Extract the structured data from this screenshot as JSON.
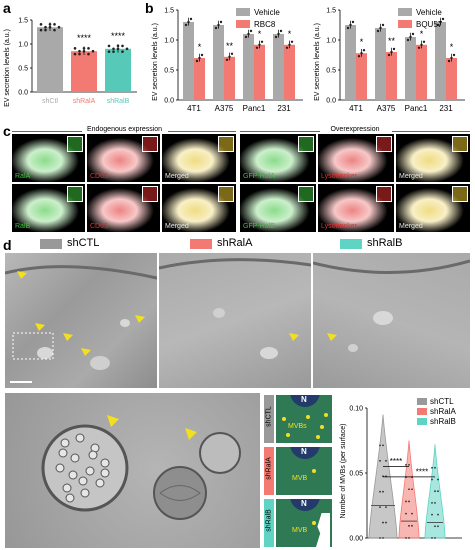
{
  "panels": {
    "a": "a",
    "b": "b",
    "c": "c",
    "d": "d"
  },
  "chart_a": {
    "type": "bar",
    "ylabel": "EV secretion levels (a.u.)",
    "categories": [
      "shCtl",
      "shRalA",
      "shRalB"
    ],
    "values": [
      1.35,
      0.85,
      0.9
    ],
    "stars": [
      "",
      "****",
      "****"
    ],
    "ylim": [
      0,
      1.5
    ],
    "yticks": [
      "0.0",
      "0.5",
      "1.0",
      "1.5"
    ],
    "colors": [
      "#a9a9a9",
      "#f27a73",
      "#56c9b8"
    ]
  },
  "chart_b1": {
    "type": "bar",
    "ylabel": "EV secretion levels (a.u.)",
    "categories": [
      "4T1",
      "A375",
      "Panc1",
      "231"
    ],
    "series": [
      {
        "name": "Vehicle",
        "values": [
          1.3,
          1.25,
          1.1,
          1.1
        ]
      },
      {
        "name": "RBC8",
        "values": [
          0.7,
          0.72,
          0.92,
          0.92
        ]
      }
    ],
    "stars": [
      "*",
      "**",
      "*",
      "*"
    ],
    "ylim": [
      0,
      1.5
    ],
    "yticks": [
      "0.0",
      "0.5",
      "1.0",
      "1.5"
    ]
  },
  "chart_b2": {
    "type": "bar",
    "ylabel": "EV secretion levels (a.u.)",
    "categories": [
      "4T1",
      "A375",
      "Panc1",
      "231"
    ],
    "series": [
      {
        "name": "Vehicle",
        "values": [
          1.25,
          1.2,
          1.05,
          1.3
        ]
      },
      {
        "name": "BQU57",
        "values": [
          0.78,
          0.8,
          0.92,
          0.7
        ]
      }
    ],
    "stars": [
      "*",
      "**",
      "*",
      "*"
    ],
    "ylim": [
      0,
      1.5
    ],
    "yticks": [
      "0.0",
      "0.5",
      "1.0",
      "1.5"
    ]
  },
  "panel_c": {
    "header_left": "Endogenous expression",
    "header_right": "Overexpression",
    "row1": [
      "RalA",
      "CD63",
      "Merged",
      "GFP-RalA",
      "Lysotracker",
      "Merged"
    ],
    "row2": [
      "RalB",
      "CD63",
      "Merged",
      "GFP-RalB",
      "Lysotracker",
      "Merged"
    ]
  },
  "panel_d": {
    "legend": [
      "shCTL",
      "shRalA",
      "shRalB"
    ],
    "colors": [
      "#999999",
      "#f27a73",
      "#5fd3c4"
    ],
    "schema": [
      {
        "side": "shCTL",
        "n": "N",
        "label": "MVBs"
      },
      {
        "side": "shRalA",
        "n": "N",
        "label": "MVB"
      },
      {
        "side": "shRalB",
        "n": "N",
        "label": "MVB"
      }
    ]
  },
  "chart_d": {
    "type": "violin",
    "ylabel": "Number of MVBs (per surface)",
    "categories": [
      "shCTL",
      "shRalA",
      "shRalB"
    ],
    "medians": [
      0.025,
      0.013,
      0.012
    ],
    "ylim": [
      0,
      0.1
    ],
    "yticks": [
      "0.00",
      "0.05",
      "0.10"
    ],
    "stars": [
      "****",
      "****"
    ],
    "colors": [
      "#999999",
      "#f27a73",
      "#5fd3c4"
    ]
  }
}
